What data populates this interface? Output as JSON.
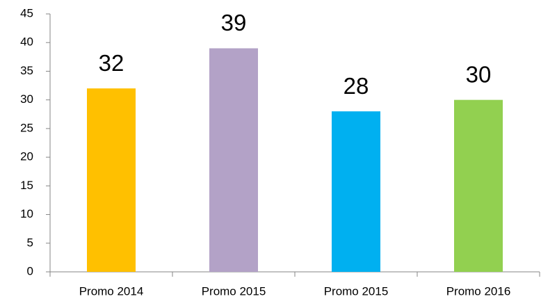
{
  "chart_data": {
    "type": "bar",
    "categories": [
      "Promo 2014",
      "Promo 2015",
      "Promo 2015",
      "Promo 2016"
    ],
    "values": [
      32,
      39,
      28,
      30
    ],
    "colors": [
      "#ffc000",
      "#b3a2c7",
      "#00b0f0",
      "#92d050"
    ],
    "ylim": [
      0,
      45
    ],
    "yticks": [
      0,
      5,
      10,
      15,
      20,
      25,
      30,
      35,
      40,
      45
    ],
    "grid": false,
    "data_labels": true
  }
}
